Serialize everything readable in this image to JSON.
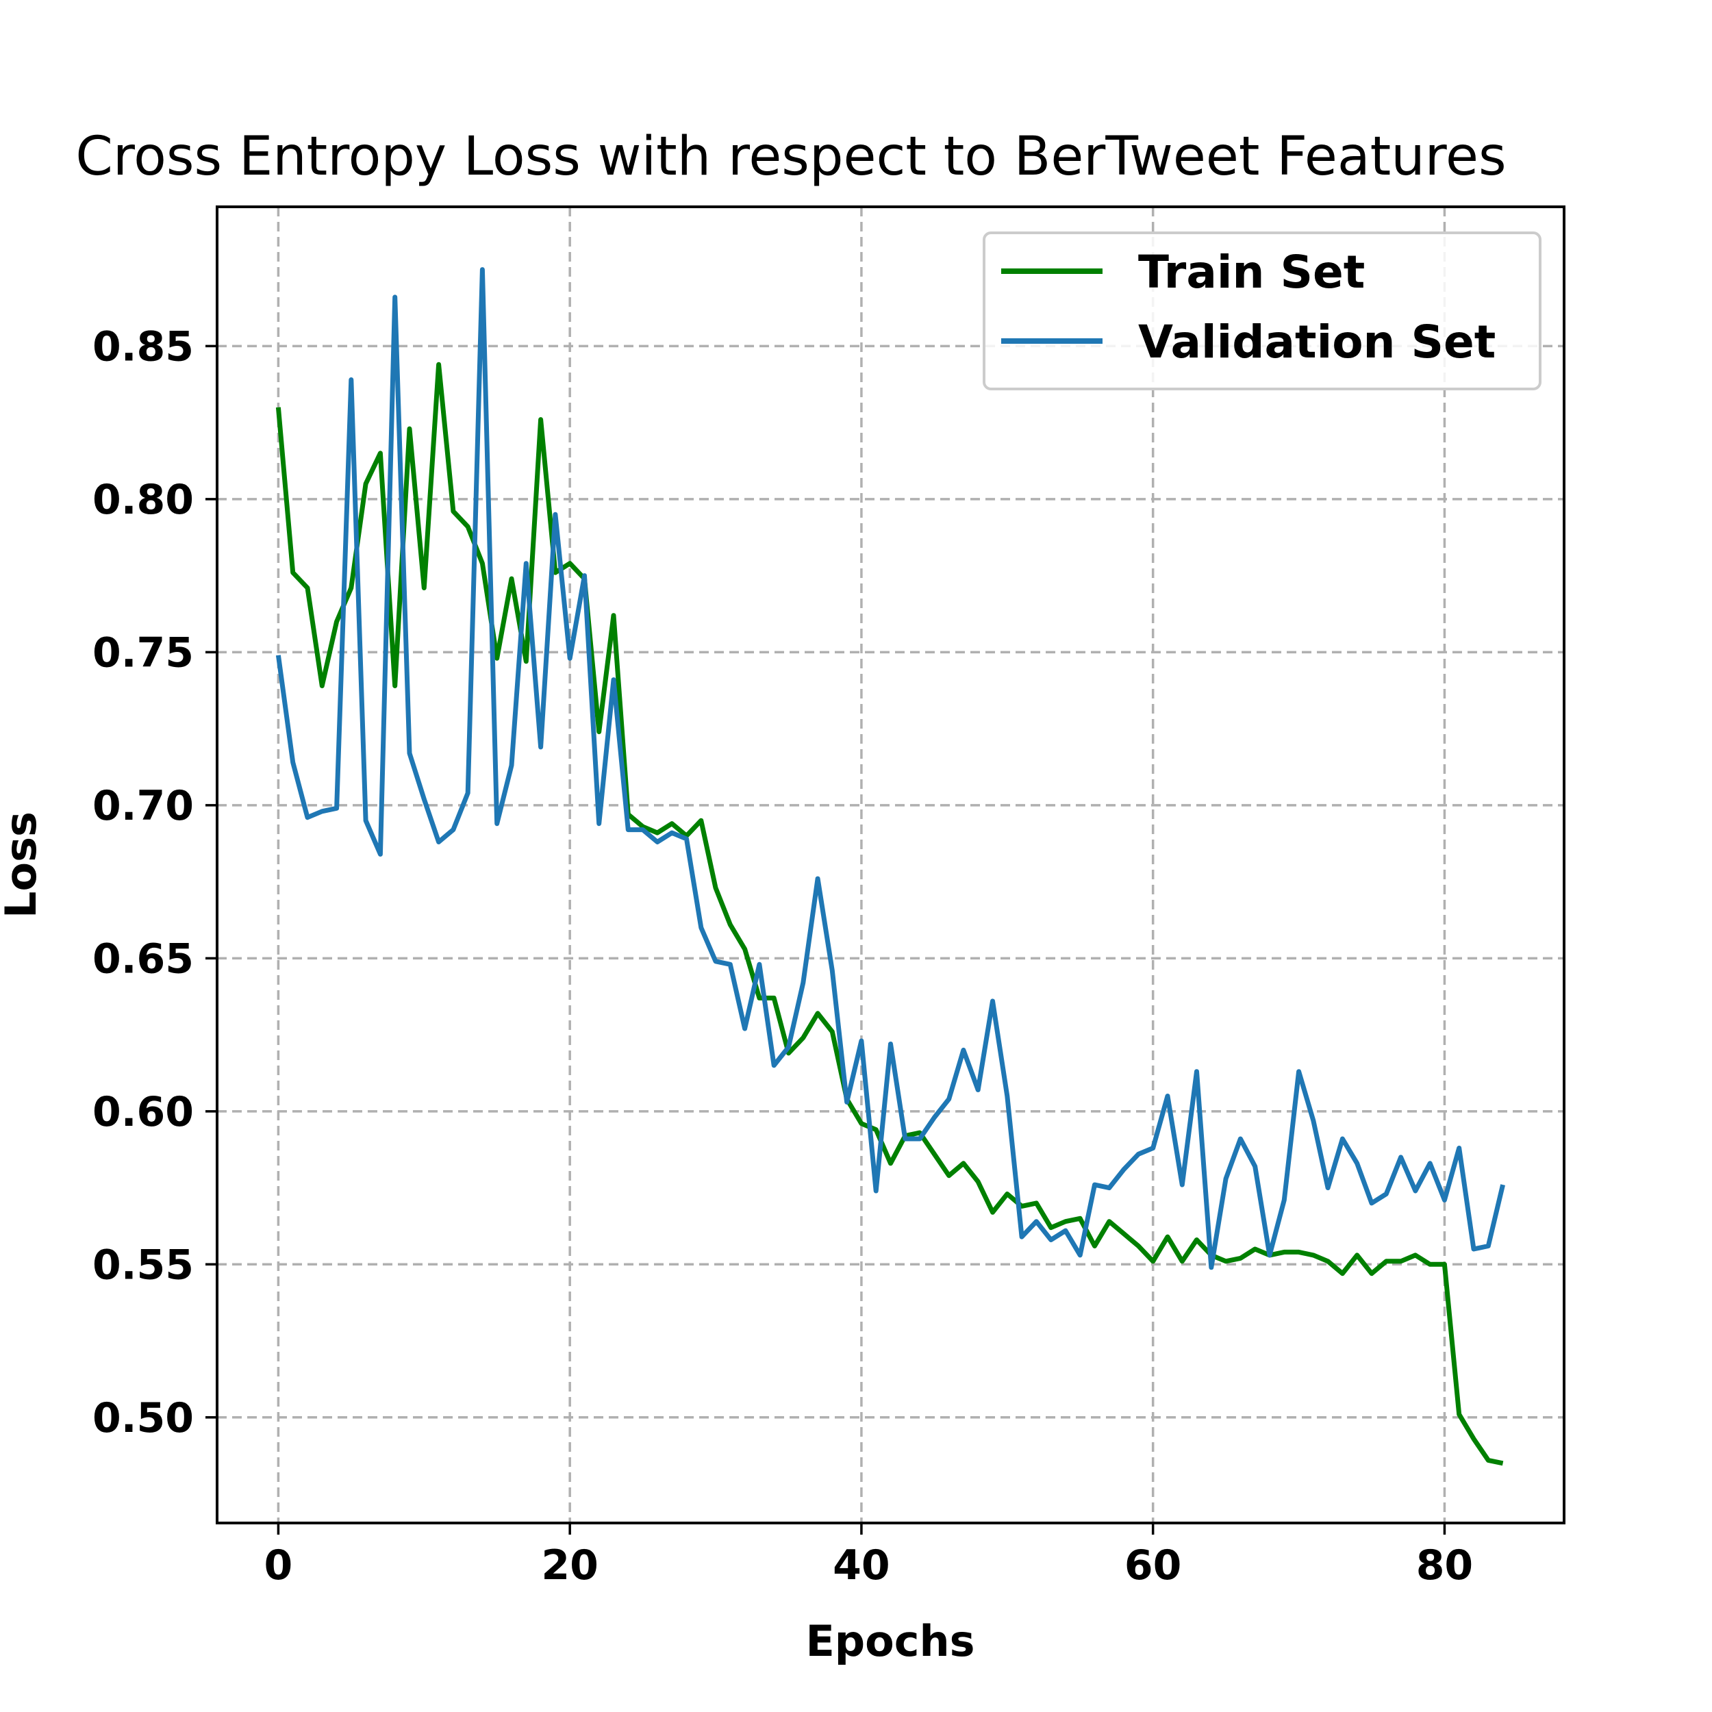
{
  "chart_data": {
    "type": "line",
    "title": "Cross Entropy Loss with respect to BerTweet Features",
    "xlabel": "Epochs",
    "ylabel": "Loss",
    "xlim": [
      -4.2,
      88.2
    ],
    "ylim": [
      0.4655,
      0.8955
    ],
    "xticks": [
      0,
      20,
      40,
      60,
      80
    ],
    "yticks": [
      0.5,
      0.55,
      0.6,
      0.65,
      0.7,
      0.75,
      0.8,
      0.85
    ],
    "ytick_labels": [
      "0.50",
      "0.55",
      "0.60",
      "0.65",
      "0.70",
      "0.75",
      "0.80",
      "0.85"
    ],
    "grid": true,
    "legend_position": "top-right",
    "series": [
      {
        "name": "Train Set",
        "color": "#008000",
        "x": [
          0,
          1,
          2,
          3,
          4,
          5,
          6,
          7,
          8,
          9,
          10,
          11,
          12,
          13,
          14,
          15,
          16,
          17,
          18,
          19,
          20,
          21,
          22,
          23,
          24,
          25,
          26,
          27,
          28,
          29,
          30,
          31,
          32,
          33,
          34,
          35,
          36,
          37,
          38,
          39,
          40,
          41,
          42,
          43,
          44,
          45,
          46,
          47,
          48,
          49,
          50,
          51,
          52,
          53,
          54,
          55,
          56,
          57,
          58,
          59,
          60,
          61,
          62,
          63,
          64,
          65,
          66,
          67,
          68,
          69,
          70,
          71,
          72,
          73,
          74,
          75,
          76,
          77,
          78,
          79,
          80,
          81,
          82,
          83,
          84
        ],
        "values": [
          0.83,
          0.776,
          0.771,
          0.739,
          0.76,
          0.771,
          0.805,
          0.815,
          0.739,
          0.823,
          0.771,
          0.844,
          0.796,
          0.791,
          0.779,
          0.748,
          0.774,
          0.747,
          0.826,
          0.776,
          0.779,
          0.774,
          0.724,
          0.762,
          0.697,
          0.693,
          0.691,
          0.694,
          0.69,
          0.695,
          0.673,
          0.661,
          0.653,
          0.637,
          0.637,
          0.619,
          0.624,
          0.632,
          0.626,
          0.604,
          0.596,
          0.594,
          0.583,
          0.592,
          0.593,
          0.586,
          0.579,
          0.583,
          0.577,
          0.567,
          0.573,
          0.569,
          0.57,
          0.562,
          0.564,
          0.565,
          0.556,
          0.564,
          0.56,
          0.556,
          0.551,
          0.559,
          0.551,
          0.558,
          0.553,
          0.551,
          0.552,
          0.555,
          0.553,
          0.554,
          0.554,
          0.553,
          0.551,
          0.547,
          0.553,
          0.547,
          0.551,
          0.551,
          0.553,
          0.55,
          0.55,
          0.501,
          0.493,
          0.486,
          0.485
        ]
      },
      {
        "name": "Validation Set",
        "color": "#1f77b4",
        "x": [
          0,
          1,
          2,
          3,
          4,
          5,
          6,
          7,
          8,
          9,
          10,
          11,
          12,
          13,
          14,
          15,
          16,
          17,
          18,
          19,
          20,
          21,
          22,
          23,
          24,
          25,
          26,
          27,
          28,
          29,
          30,
          31,
          32,
          33,
          34,
          35,
          36,
          37,
          38,
          39,
          40,
          41,
          42,
          43,
          44,
          45,
          46,
          47,
          48,
          49,
          50,
          51,
          52,
          53,
          54,
          55,
          56,
          57,
          58,
          59,
          60,
          61,
          62,
          63,
          64,
          65,
          66,
          67,
          68,
          69,
          70,
          71,
          72,
          73,
          74,
          75,
          76,
          77,
          78,
          79,
          80,
          81,
          82,
          83,
          84
        ],
        "values": [
          0.749,
          0.714,
          0.696,
          0.698,
          0.699,
          0.839,
          0.695,
          0.684,
          0.866,
          0.717,
          0.702,
          0.688,
          0.692,
          0.704,
          0.875,
          0.694,
          0.713,
          0.779,
          0.719,
          0.795,
          0.748,
          0.775,
          0.694,
          0.741,
          0.692,
          0.692,
          0.688,
          0.691,
          0.689,
          0.66,
          0.649,
          0.648,
          0.627,
          0.648,
          0.615,
          0.621,
          0.642,
          0.676,
          0.646,
          0.603,
          0.623,
          0.574,
          0.622,
          0.591,
          0.591,
          0.598,
          0.604,
          0.62,
          0.607,
          0.636,
          0.605,
          0.559,
          0.564,
          0.558,
          0.561,
          0.553,
          0.576,
          0.575,
          0.581,
          0.586,
          0.588,
          0.605,
          0.576,
          0.613,
          0.549,
          0.578,
          0.591,
          0.582,
          0.553,
          0.571,
          0.613,
          0.597,
          0.575,
          0.591,
          0.583,
          0.57,
          0.573,
          0.585,
          0.574,
          0.583,
          0.571,
          0.588,
          0.555,
          0.556,
          0.576
        ]
      }
    ]
  }
}
